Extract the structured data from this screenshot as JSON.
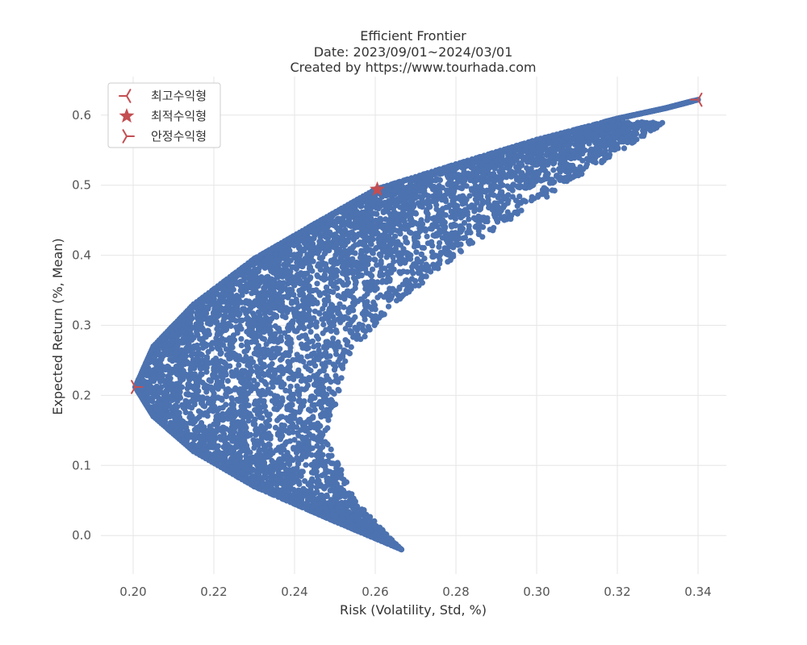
{
  "chart_data": {
    "type": "scatter",
    "title": [
      "Efficient Frontier",
      "Date: 2023/09/01~2024/03/01",
      "Created by https://www.tourhada.com"
    ],
    "xlabel": "Risk (Volatility, Std, %)",
    "ylabel": "Expected Return (%, Mean)",
    "xlim": [
      0.192,
      0.347
    ],
    "ylim": [
      -0.055,
      0.655
    ],
    "x_ticks": [
      0.2,
      0.22,
      0.24,
      0.26,
      0.28,
      0.3,
      0.32,
      0.34
    ],
    "x_tick_labels": [
      "0.20",
      "0.22",
      "0.24",
      "0.26",
      "0.28",
      "0.30",
      "0.32",
      "0.34"
    ],
    "y_ticks": [
      0.0,
      0.1,
      0.2,
      0.3,
      0.4,
      0.5,
      0.6
    ],
    "y_tick_labels": [
      "0.0",
      "0.1",
      "0.2",
      "0.3",
      "0.4",
      "0.5",
      "0.6"
    ],
    "grid": true,
    "legend_position": "top-left",
    "point_color": "#4c72b0",
    "marker_color": "#c44e52",
    "frontier_outline": [
      {
        "x": 0.2665,
        "y": -0.02
      },
      {
        "x": 0.25,
        "y": 0.02
      },
      {
        "x": 0.23,
        "y": 0.07
      },
      {
        "x": 0.215,
        "y": 0.12
      },
      {
        "x": 0.205,
        "y": 0.17
      },
      {
        "x": 0.2005,
        "y": 0.212
      },
      {
        "x": 0.205,
        "y": 0.27
      },
      {
        "x": 0.215,
        "y": 0.33
      },
      {
        "x": 0.23,
        "y": 0.395
      },
      {
        "x": 0.245,
        "y": 0.445
      },
      {
        "x": 0.26,
        "y": 0.494
      },
      {
        "x": 0.28,
        "y": 0.53
      },
      {
        "x": 0.3,
        "y": 0.565
      },
      {
        "x": 0.32,
        "y": 0.595
      },
      {
        "x": 0.332,
        "y": 0.61
      },
      {
        "x": 0.34,
        "y": 0.622
      }
    ],
    "inner_boundary": [
      {
        "x": 0.2665,
        "y": -0.02
      },
      {
        "x": 0.255,
        "y": 0.05
      },
      {
        "x": 0.248,
        "y": 0.14
      },
      {
        "x": 0.253,
        "y": 0.25
      },
      {
        "x": 0.265,
        "y": 0.33
      },
      {
        "x": 0.285,
        "y": 0.42
      },
      {
        "x": 0.31,
        "y": 0.51
      },
      {
        "x": 0.332,
        "y": 0.59
      }
    ],
    "markers": [
      {
        "name": "최고수익형",
        "symbol": "tri_left",
        "x": 0.34,
        "y": 0.622
      },
      {
        "name": "최적수익형",
        "symbol": "star",
        "x": 0.2605,
        "y": 0.494
      },
      {
        "name": "안정수익형",
        "symbol": "tri_right",
        "x": 0.2005,
        "y": 0.212
      }
    ]
  }
}
